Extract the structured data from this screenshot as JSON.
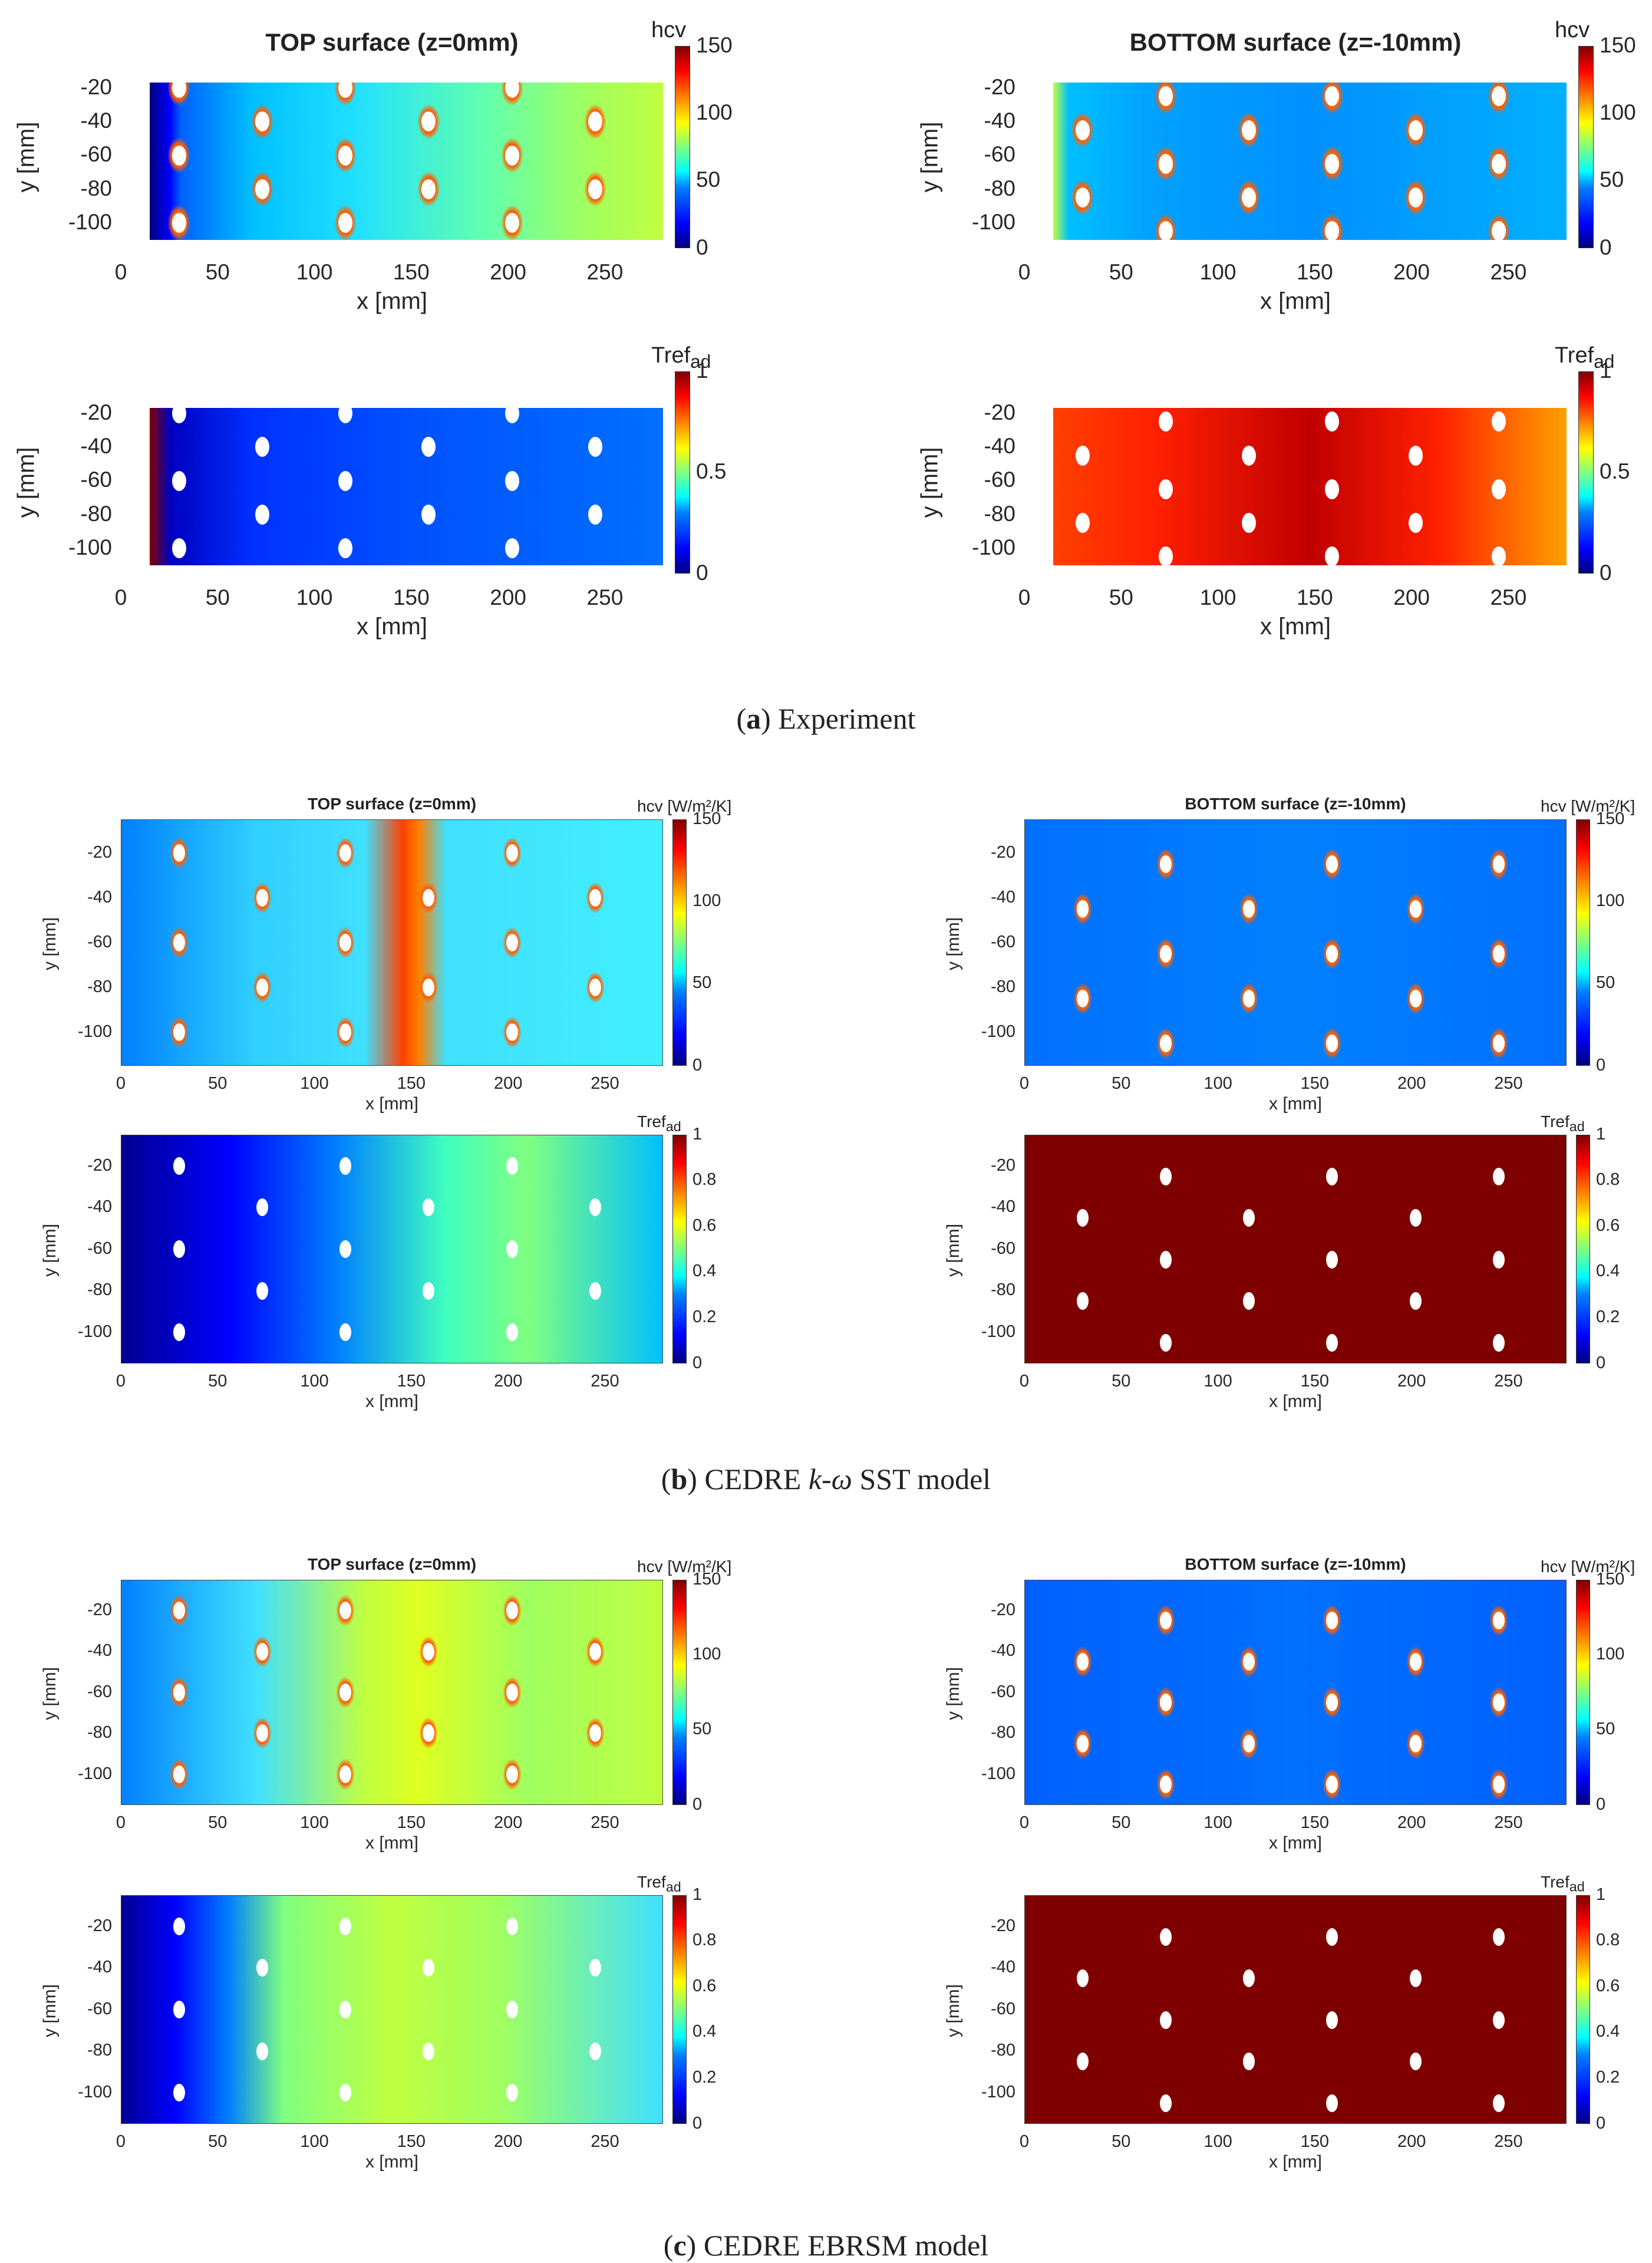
{
  "captions": [
    {
      "letter": "a",
      "text": " Experiment"
    },
    {
      "letter": "b",
      "text_pre": " CEDRE ",
      "text_italic": "k-ω",
      "text_post": " SST model"
    },
    {
      "letter": "c",
      "text": " CEDRE EBRSM model"
    }
  ],
  "panels": [
    {
      "id": "exp-top-hcv",
      "title": "TOP surface (z=0mm)",
      "cb_title": "hcv",
      "cb_sub": "",
      "cb_ticks": [
        "150",
        "100",
        "50",
        "0"
      ],
      "xlabel": "x [mm]",
      "ylabel": "y [mm]",
      "xticks": [
        "0",
        "50",
        "100",
        "150",
        "200",
        "250"
      ],
      "yticks": [
        "-20",
        "-40",
        "-60",
        "-80",
        "-100"
      ],
      "bg": "top-hcv-exp"
    },
    {
      "id": "exp-bot-hcv",
      "title": "BOTTOM surface (z=-10mm)",
      "cb_title": "hcv",
      "cb_sub": "",
      "cb_ticks": [
        "150",
        "100",
        "50",
        "0"
      ],
      "xlabel": "x [mm]",
      "ylabel": "y [mm]",
      "xticks": [
        "0",
        "50",
        "100",
        "150",
        "200",
        "250"
      ],
      "yticks": [
        "-20",
        "-40",
        "-60",
        "-80",
        "-100"
      ],
      "bg": "bot-hcv-exp"
    },
    {
      "id": "exp-top-tref",
      "title": "",
      "cb_title": "Tref",
      "cb_sub": "ad",
      "cb_ticks": [
        "1",
        "0.5",
        "0"
      ],
      "xlabel": "x [mm]",
      "ylabel": "y [mm]",
      "xticks": [
        "0",
        "50",
        "100",
        "150",
        "200",
        "250"
      ],
      "yticks": [
        "-20",
        "-40",
        "-60",
        "-80",
        "-100"
      ],
      "bg": "top-tref-exp"
    },
    {
      "id": "exp-bot-tref",
      "title": "",
      "cb_title": "Tref",
      "cb_sub": "ad",
      "cb_ticks": [
        "1",
        "0.5",
        "0"
      ],
      "xlabel": "x [mm]",
      "ylabel": "y [mm]",
      "xticks": [
        "0",
        "50",
        "100",
        "150",
        "200",
        "250"
      ],
      "yticks": [
        "-20",
        "-40",
        "-60",
        "-80",
        "-100"
      ],
      "bg": "bot-tref-exp"
    },
    {
      "id": "sst-top-hcv",
      "title": "TOP surface (z=0mm)",
      "cb_title": "hcv [W/m²/K]",
      "cb_sub": "",
      "cb_ticks": [
        "150",
        "100",
        "50",
        "0"
      ],
      "xlabel": "x [mm]",
      "ylabel": "y [mm]",
      "xticks": [
        "0",
        "50",
        "100",
        "150",
        "200",
        "250"
      ],
      "yticks": [
        "-20",
        "-40",
        "-60",
        "-80",
        "-100"
      ],
      "bg": "top-hcv-sst"
    },
    {
      "id": "sst-bot-hcv",
      "title": "BOTTOM surface (z=-10mm)",
      "cb_title": "hcv [W/m²/K]",
      "cb_sub": "",
      "cb_ticks": [
        "150",
        "100",
        "50",
        "0"
      ],
      "xlabel": "x [mm]",
      "ylabel": "y [mm]",
      "xticks": [
        "0",
        "50",
        "100",
        "150",
        "200",
        "250"
      ],
      "yticks": [
        "-20",
        "-40",
        "-60",
        "-80",
        "-100"
      ],
      "bg": "bot-hcv-sst"
    },
    {
      "id": "sst-top-tref",
      "title": "",
      "cb_title": "Tref",
      "cb_sub": "ad",
      "cb_ticks": [
        "1",
        "0.8",
        "0.6",
        "0.4",
        "0.2",
        "0"
      ],
      "xlabel": "x [mm]",
      "ylabel": "y [mm]",
      "xticks": [
        "0",
        "50",
        "100",
        "150",
        "200",
        "250"
      ],
      "yticks": [
        "-20",
        "-40",
        "-60",
        "-80",
        "-100"
      ],
      "bg": "top-tref-sst"
    },
    {
      "id": "sst-bot-tref",
      "title": "",
      "cb_title": "Tref",
      "cb_sub": "ad",
      "cb_ticks": [
        "1",
        "0.8",
        "0.6",
        "0.4",
        "0.2",
        "0"
      ],
      "xlabel": "x [mm]",
      "ylabel": "y [mm]",
      "xticks": [
        "0",
        "50",
        "100",
        "150",
        "200",
        "250"
      ],
      "yticks": [
        "-20",
        "-40",
        "-60",
        "-80",
        "-100"
      ],
      "bg": "bot-tref-sst"
    },
    {
      "id": "ebrsm-top-hcv",
      "title": "TOP surface (z=0mm)",
      "cb_title": "hcv [W/m²/K]",
      "cb_sub": "",
      "cb_ticks": [
        "150",
        "100",
        "50",
        "0"
      ],
      "xlabel": "x [mm]",
      "ylabel": "y [mm]",
      "xticks": [
        "0",
        "50",
        "100",
        "150",
        "200",
        "250"
      ],
      "yticks": [
        "-20",
        "-40",
        "-60",
        "-80",
        "-100"
      ],
      "bg": "top-hcv-ebrsm"
    },
    {
      "id": "ebrsm-bot-hcv",
      "title": "BOTTOM surface (z=-10mm)",
      "cb_title": "hcv [W/m²/K]",
      "cb_sub": "",
      "cb_ticks": [
        "150",
        "100",
        "50",
        "0"
      ],
      "xlabel": "x [mm]",
      "ylabel": "y [mm]",
      "xticks": [
        "0",
        "50",
        "100",
        "150",
        "200",
        "250"
      ],
      "yticks": [
        "-20",
        "-40",
        "-60",
        "-80",
        "-100"
      ],
      "bg": "bot-hcv-ebrsm"
    },
    {
      "id": "ebrsm-top-tref",
      "title": "",
      "cb_title": "Tref",
      "cb_sub": "ad",
      "cb_ticks": [
        "1",
        "0.8",
        "0.6",
        "0.4",
        "0.2",
        "0"
      ],
      "xlabel": "x [mm]",
      "ylabel": "y [mm]",
      "xticks": [
        "0",
        "50",
        "100",
        "150",
        "200",
        "250"
      ],
      "yticks": [
        "-20",
        "-40",
        "-60",
        "-80",
        "-100"
      ],
      "bg": "top-tref-ebrsm"
    },
    {
      "id": "ebrsm-bot-tref",
      "title": "",
      "cb_title": "Tref",
      "cb_sub": "ad",
      "cb_ticks": [
        "1",
        "0.8",
        "0.6",
        "0.4",
        "0.2",
        "0"
      ],
      "xlabel": "x [mm]",
      "ylabel": "y [mm]",
      "xticks": [
        "0",
        "50",
        "100",
        "150",
        "200",
        "250"
      ],
      "yticks": [
        "-20",
        "-40",
        "-60",
        "-80",
        "-100"
      ],
      "bg": "bot-tref-ebrsm"
    }
  ],
  "chart_data": {
    "type": "heatmap",
    "xlim": [
      0,
      280
    ],
    "ylim": [
      -115,
      -5
    ],
    "colormap": "jet",
    "colorbars": {
      "hcv": {
        "range": [
          0,
          150
        ],
        "ticks": [
          0,
          50,
          100,
          150
        ]
      },
      "Tref_ad": {
        "range": [
          0,
          1
        ]
      }
    },
    "holes_top_x": [
      30,
      73,
      116,
      159,
      202,
      245
    ],
    "holes_top_y": {
      "odd_rows": [
        -20,
        -60,
        -100
      ],
      "even_rows": [
        -40,
        -80
      ]
    },
    "holes_bottom_x": [
      30,
      73,
      116,
      159,
      202,
      245
    ],
    "holes_bottom_y": {
      "odd_rows": [
        -45,
        -85
      ],
      "even_rows": [
        -25,
        -65,
        -105
      ]
    }
  }
}
